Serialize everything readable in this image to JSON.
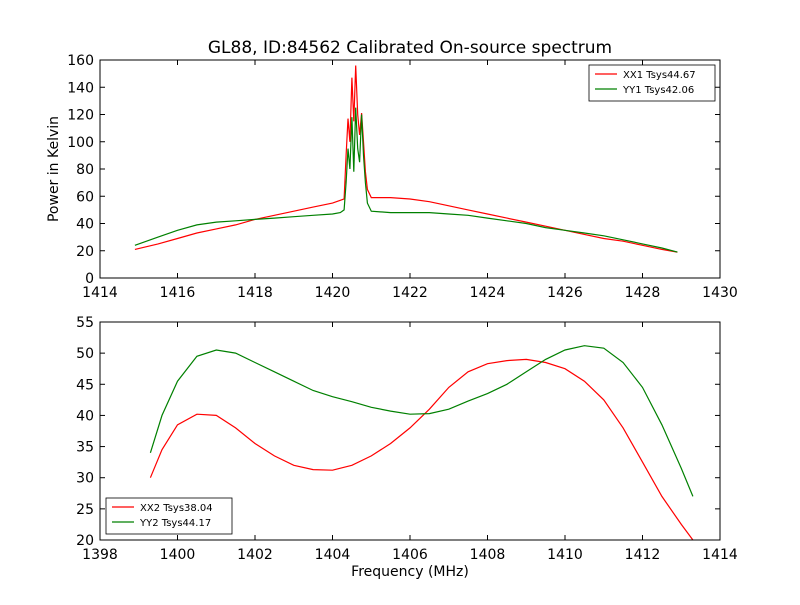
{
  "chart_data": [
    {
      "type": "line",
      "title": "GL88, ID:84562 Calibrated On-source spectrum",
      "xlabel": "",
      "ylabel": "Power in Kelvin",
      "xlim": [
        1414,
        1430
      ],
      "ylim": [
        0,
        160
      ],
      "xticks": [
        "1414",
        "1416",
        "1418",
        "1420",
        "1422",
        "1424",
        "1426",
        "1428",
        "1430"
      ],
      "yticks": [
        "0",
        "20",
        "40",
        "60",
        "80",
        "100",
        "120",
        "140",
        "160"
      ],
      "legend_position": "top-right",
      "series": [
        {
          "name": "XX1 Tsys44.67",
          "color": "#ff0000",
          "x": [
            1414.9,
            1415.5,
            1416.0,
            1416.5,
            1417.0,
            1417.5,
            1418.0,
            1418.5,
            1419.0,
            1419.5,
            1420.0,
            1420.2,
            1420.3,
            1420.35,
            1420.4,
            1420.45,
            1420.5,
            1420.55,
            1420.6,
            1420.65,
            1420.7,
            1420.75,
            1420.8,
            1420.85,
            1420.9,
            1421.0,
            1421.5,
            1422.0,
            1422.5,
            1423.0,
            1423.5,
            1424.0,
            1424.5,
            1425.0,
            1425.5,
            1426.0,
            1426.5,
            1427.0,
            1427.5,
            1428.0,
            1428.5,
            1428.9
          ],
          "values": [
            21,
            25,
            29,
            33,
            36,
            39,
            43,
            46,
            49,
            52,
            55,
            57,
            58,
            90,
            117,
            100,
            147,
            115,
            156,
            120,
            105,
            121,
            100,
            78,
            65,
            59,
            59,
            58,
            56,
            53,
            50,
            47,
            44,
            41,
            38,
            35,
            32,
            29,
            27,
            24,
            21,
            19
          ]
        },
        {
          "name": "YY1 Tsys42.06",
          "color": "#008000",
          "x": [
            1414.9,
            1415.5,
            1416.0,
            1416.5,
            1417.0,
            1417.5,
            1418.0,
            1418.5,
            1419.0,
            1419.5,
            1420.0,
            1420.2,
            1420.3,
            1420.35,
            1420.4,
            1420.45,
            1420.5,
            1420.55,
            1420.6,
            1420.65,
            1420.7,
            1420.75,
            1420.8,
            1420.85,
            1420.9,
            1421.0,
            1421.5,
            1422.0,
            1422.5,
            1423.0,
            1423.5,
            1424.0,
            1424.5,
            1425.0,
            1425.5,
            1426.0,
            1426.5,
            1427.0,
            1427.5,
            1428.0,
            1428.5,
            1428.9
          ],
          "values": [
            24,
            30,
            35,
            39,
            41,
            42,
            43,
            44,
            45,
            46,
            47,
            48,
            50,
            70,
            95,
            80,
            118,
            78,
            125,
            95,
            85,
            120,
            90,
            70,
            55,
            49,
            48,
            48,
            48,
            47,
            46,
            44,
            42,
            40,
            37,
            35,
            33,
            31,
            28,
            25,
            22,
            19
          ]
        }
      ]
    },
    {
      "type": "line",
      "title": "",
      "xlabel": "Frequency (MHz)",
      "ylabel": "",
      "xlim": [
        1398,
        1414
      ],
      "ylim": [
        20,
        55
      ],
      "xticks": [
        "1398",
        "1400",
        "1402",
        "1404",
        "1406",
        "1408",
        "1410",
        "1412",
        "1414"
      ],
      "yticks": [
        "20",
        "25",
        "30",
        "35",
        "40",
        "45",
        "50",
        "55"
      ],
      "legend_position": "bottom-left",
      "series": [
        {
          "name": "XX2 Tsys38.04",
          "color": "#ff0000",
          "x": [
            1399.3,
            1399.6,
            1400.0,
            1400.5,
            1401.0,
            1401.5,
            1402.0,
            1402.5,
            1403.0,
            1403.5,
            1404.0,
            1404.5,
            1405.0,
            1405.5,
            1406.0,
            1406.5,
            1407.0,
            1407.5,
            1408.0,
            1408.5,
            1409.0,
            1409.5,
            1410.0,
            1410.5,
            1411.0,
            1411.5,
            1412.0,
            1412.5,
            1413.0,
            1413.3
          ],
          "values": [
            30,
            34.5,
            38.5,
            40.2,
            40,
            38,
            35.5,
            33.5,
            32,
            31.3,
            31.2,
            32,
            33.5,
            35.5,
            38,
            41,
            44.5,
            47,
            48.3,
            48.8,
            49,
            48.5,
            47.5,
            45.5,
            42.5,
            38,
            32.5,
            27,
            22.5,
            20
          ]
        },
        {
          "name": "YY2 Tsys44.17",
          "color": "#008000",
          "x": [
            1399.3,
            1399.6,
            1400.0,
            1400.5,
            1401.0,
            1401.5,
            1402.0,
            1402.5,
            1403.0,
            1403.5,
            1404.0,
            1404.5,
            1405.0,
            1405.5,
            1406.0,
            1406.5,
            1407.0,
            1407.5,
            1408.0,
            1408.5,
            1409.0,
            1409.5,
            1410.0,
            1410.5,
            1411.0,
            1411.5,
            1412.0,
            1412.5,
            1413.0,
            1413.3
          ],
          "values": [
            34,
            40,
            45.5,
            49.5,
            50.5,
            50,
            48.5,
            47,
            45.5,
            44,
            43,
            42.2,
            41.3,
            40.7,
            40.2,
            40.3,
            41,
            42.3,
            43.5,
            45,
            47,
            49,
            50.5,
            51.2,
            50.8,
            48.5,
            44.5,
            38.5,
            31.5,
            27
          ]
        }
      ]
    }
  ]
}
